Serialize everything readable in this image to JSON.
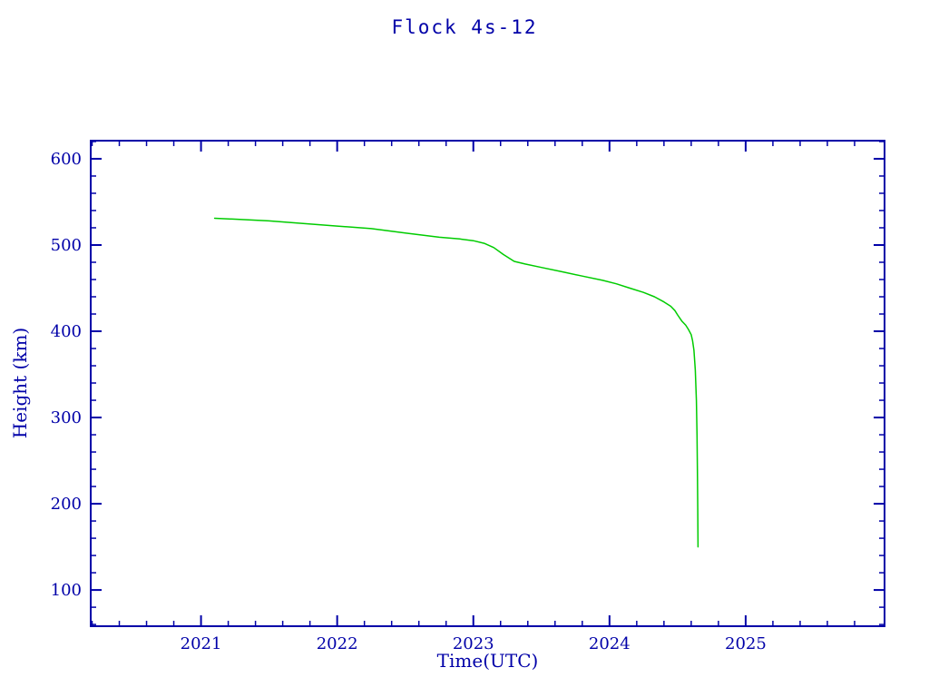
{
  "title": "Flock 4s-12",
  "colors": {
    "background": "#FFFFFF",
    "axis": "#0000A8",
    "line": "#00CC00"
  },
  "chart_data": {
    "type": "line",
    "title": "Flock 4s-12",
    "xlabel": "Time(UTC)",
    "ylabel": "Height (km)",
    "xlim": [
      2020.19,
      2026.02
    ],
    "ylim": [
      58,
      621
    ],
    "xticks": [
      2021,
      2022,
      2023,
      2024,
      2025
    ],
    "yticks": [
      100,
      200,
      300,
      400,
      500,
      600
    ],
    "x_minor_step": 0.2,
    "y_minor_step": 20,
    "grid": false,
    "series": [
      {
        "name": "Flock 4s-12 orbital height",
        "color": "#00CC00",
        "x": [
          2021.1,
          2021.25,
          2021.5,
          2021.75,
          2022.0,
          2022.25,
          2022.5,
          2022.75,
          2022.9,
          2023.0,
          2023.08,
          2023.15,
          2023.22,
          2023.3,
          2023.38,
          2023.5,
          2023.65,
          2023.8,
          2023.95,
          2024.05,
          2024.15,
          2024.25,
          2024.33,
          2024.4,
          2024.45,
          2024.48,
          2024.5,
          2024.53,
          2024.56,
          2024.58,
          2024.6,
          2024.61,
          2024.62,
          2024.63,
          2024.638,
          2024.643,
          2024.646,
          2024.648,
          2024.65
        ],
        "y": [
          531,
          530,
          528,
          525,
          522,
          519,
          514,
          509,
          507,
          505,
          502,
          497,
          489,
          481,
          478,
          474,
          469,
          464,
          459,
          455,
          450,
          445,
          440,
          434,
          429,
          424,
          419,
          412,
          407,
          402,
          396,
          389,
          378,
          355,
          320,
          280,
          230,
          195,
          150
        ]
      }
    ]
  }
}
